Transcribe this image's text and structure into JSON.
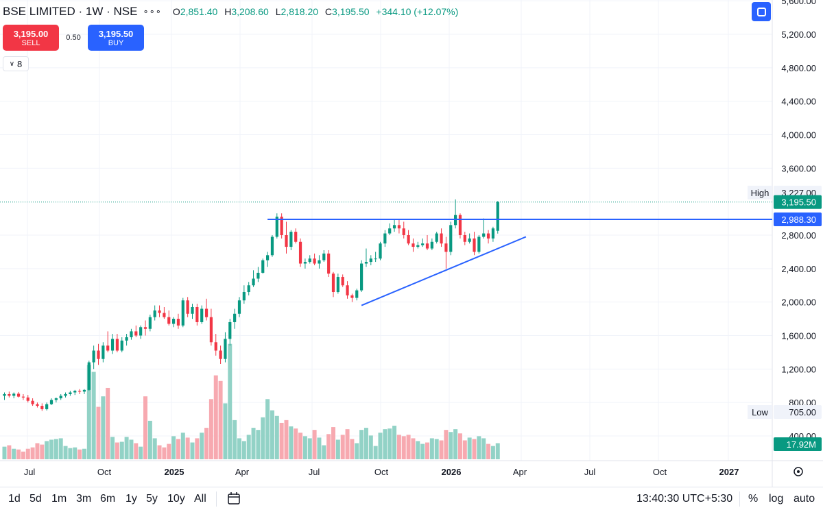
{
  "header": {
    "symbol": "BSE LIMITED",
    "interval": "1W",
    "exchange": "NSE",
    "open_label": "O",
    "open": "2,851.40",
    "high_label": "H",
    "high": "3,208.60",
    "low_label": "L",
    "low": "2,818.20",
    "close_label": "C",
    "close": "3,195.50",
    "change": "+344.10 (+12.07%)"
  },
  "trade": {
    "sell_price": "3,195.00",
    "sell_label": "SELL",
    "spread": "0.50",
    "buy_price": "3,195.50",
    "buy_label": "BUY"
  },
  "indicators": {
    "label": "8"
  },
  "price_axis": {
    "ticks": [
      "5,600.00",
      "5,200.00",
      "4,800.00",
      "4,400.00",
      "4,000.00",
      "3,600.00",
      "2,800.00",
      "2,400.00",
      "2,000.00",
      "1,600.00",
      "1,200.00",
      "800.00",
      "400.00"
    ],
    "high_label": "High",
    "high_value": "3,227.00",
    "current_price": "3,195.50",
    "line_price": "2,988.30",
    "low_label": "Low",
    "low_value": "705.00",
    "volume": "17.92M"
  },
  "time_axis": {
    "labels": [
      "Jul",
      "Oct",
      "2025",
      "Apr",
      "Jul",
      "Oct",
      "2026",
      "Apr",
      "Jul",
      "Oct",
      "2027"
    ]
  },
  "bottom_bar": {
    "timeframes": [
      "1d",
      "5d",
      "1m",
      "3m",
      "6m",
      "1y",
      "5y",
      "10y",
      "All"
    ],
    "clock": "13:40:30 UTC+5:30",
    "percent": "%",
    "log": "log",
    "auto": "auto"
  },
  "colors": {
    "up": "#089981",
    "down": "#f23645",
    "line": "#2962ff",
    "vol_up": "#92d2c6",
    "vol_down": "#f7a9b0"
  },
  "chart_data": {
    "type": "candlestick",
    "title": "BSE LIMITED · 1W · NSE",
    "ylim": [
      0,
      5700
    ],
    "x_labels": [
      "Jul",
      "Oct",
      "2025",
      "Apr",
      "Jul",
      "Oct",
      "2026",
      "Apr",
      "Jul",
      "Oct",
      "2027"
    ],
    "candles": [
      {
        "o": 880,
        "h": 920,
        "l": 830,
        "c": 900,
        "v": 180
      },
      {
        "o": 900,
        "h": 930,
        "l": 860,
        "c": 880,
        "v": 200
      },
      {
        "o": 880,
        "h": 920,
        "l": 850,
        "c": 905,
        "v": 150
      },
      {
        "o": 905,
        "h": 925,
        "l": 860,
        "c": 870,
        "v": 140
      },
      {
        "o": 870,
        "h": 900,
        "l": 830,
        "c": 860,
        "v": 110
      },
      {
        "o": 860,
        "h": 890,
        "l": 800,
        "c": 820,
        "v": 150
      },
      {
        "o": 820,
        "h": 850,
        "l": 760,
        "c": 780,
        "v": 170
      },
      {
        "o": 780,
        "h": 800,
        "l": 740,
        "c": 760,
        "v": 230
      },
      {
        "o": 760,
        "h": 790,
        "l": 700,
        "c": 720,
        "v": 210
      },
      {
        "o": 720,
        "h": 800,
        "l": 705,
        "c": 780,
        "v": 260
      },
      {
        "o": 780,
        "h": 850,
        "l": 770,
        "c": 830,
        "v": 280
      },
      {
        "o": 830,
        "h": 860,
        "l": 800,
        "c": 850,
        "v": 290
      },
      {
        "o": 850,
        "h": 900,
        "l": 830,
        "c": 880,
        "v": 300
      },
      {
        "o": 880,
        "h": 920,
        "l": 860,
        "c": 900,
        "v": 190
      },
      {
        "o": 900,
        "h": 940,
        "l": 880,
        "c": 920,
        "v": 160
      },
      {
        "o": 920,
        "h": 950,
        "l": 890,
        "c": 940,
        "v": 170
      },
      {
        "o": 940,
        "h": 960,
        "l": 900,
        "c": 930,
        "v": 140
      },
      {
        "o": 930,
        "h": 960,
        "l": 900,
        "c": 950,
        "v": 150
      },
      {
        "o": 950,
        "h": 1300,
        "l": 940,
        "c": 1280,
        "v": 1350
      },
      {
        "o": 1280,
        "h": 1480,
        "l": 1200,
        "c": 1420,
        "v": 1250
      },
      {
        "o": 1420,
        "h": 1500,
        "l": 1250,
        "c": 1320,
        "v": 750
      },
      {
        "o": 1320,
        "h": 1520,
        "l": 1280,
        "c": 1480,
        "v": 900
      },
      {
        "o": 1480,
        "h": 1650,
        "l": 1400,
        "c": 1420,
        "v": 1020
      },
      {
        "o": 1420,
        "h": 1620,
        "l": 1380,
        "c": 1560,
        "v": 320
      },
      {
        "o": 1560,
        "h": 1620,
        "l": 1400,
        "c": 1420,
        "v": 240
      },
      {
        "o": 1420,
        "h": 1580,
        "l": 1400,
        "c": 1540,
        "v": 250
      },
      {
        "o": 1540,
        "h": 1620,
        "l": 1480,
        "c": 1580,
        "v": 320
      },
      {
        "o": 1580,
        "h": 1680,
        "l": 1550,
        "c": 1650,
        "v": 280
      },
      {
        "o": 1650,
        "h": 1720,
        "l": 1580,
        "c": 1600,
        "v": 230
      },
      {
        "o": 1600,
        "h": 1720,
        "l": 1560,
        "c": 1700,
        "v": 180
      },
      {
        "o": 1700,
        "h": 1780,
        "l": 1600,
        "c": 1680,
        "v": 900
      },
      {
        "o": 1680,
        "h": 1850,
        "l": 1650,
        "c": 1820,
        "v": 550
      },
      {
        "o": 1820,
        "h": 1960,
        "l": 1780,
        "c": 1900,
        "v": 300
      },
      {
        "o": 1900,
        "h": 1960,
        "l": 1820,
        "c": 1870,
        "v": 200
      },
      {
        "o": 1870,
        "h": 1940,
        "l": 1800,
        "c": 1820,
        "v": 170
      },
      {
        "o": 1820,
        "h": 1900,
        "l": 1720,
        "c": 1740,
        "v": 220
      },
      {
        "o": 1740,
        "h": 1820,
        "l": 1700,
        "c": 1800,
        "v": 330
      },
      {
        "o": 1800,
        "h": 1860,
        "l": 1680,
        "c": 1720,
        "v": 290
      },
      {
        "o": 1720,
        "h": 2050,
        "l": 1700,
        "c": 2020,
        "v": 380
      },
      {
        "o": 2020,
        "h": 2060,
        "l": 1820,
        "c": 1860,
        "v": 310
      },
      {
        "o": 1860,
        "h": 1980,
        "l": 1800,
        "c": 1940,
        "v": 240
      },
      {
        "o": 1940,
        "h": 1980,
        "l": 1720,
        "c": 1760,
        "v": 300
      },
      {
        "o": 1760,
        "h": 1960,
        "l": 1740,
        "c": 1920,
        "v": 380
      },
      {
        "o": 1920,
        "h": 2040,
        "l": 1780,
        "c": 1820,
        "v": 450
      },
      {
        "o": 1820,
        "h": 1920,
        "l": 1480,
        "c": 1520,
        "v": 860
      },
      {
        "o": 1520,
        "h": 1620,
        "l": 1360,
        "c": 1420,
        "v": 1200
      },
      {
        "o": 1420,
        "h": 1480,
        "l": 1260,
        "c": 1320,
        "v": 1120
      },
      {
        "o": 1320,
        "h": 1640,
        "l": 1280,
        "c": 1560,
        "v": 800
      },
      {
        "o": 1560,
        "h": 1800,
        "l": 1480,
        "c": 1760,
        "v": 1650
      },
      {
        "o": 1760,
        "h": 1920,
        "l": 1680,
        "c": 1860,
        "v": 560
      },
      {
        "o": 1860,
        "h": 2060,
        "l": 1820,
        "c": 2020,
        "v": 300
      },
      {
        "o": 2020,
        "h": 2200,
        "l": 1980,
        "c": 2120,
        "v": 260
      },
      {
        "o": 2120,
        "h": 2240,
        "l": 2080,
        "c": 2200,
        "v": 350
      },
      {
        "o": 2200,
        "h": 2380,
        "l": 2180,
        "c": 2280,
        "v": 450
      },
      {
        "o": 2280,
        "h": 2420,
        "l": 2240,
        "c": 2350,
        "v": 420
      },
      {
        "o": 2350,
        "h": 2520,
        "l": 2340,
        "c": 2500,
        "v": 600
      },
      {
        "o": 2500,
        "h": 2600,
        "l": 2420,
        "c": 2560,
        "v": 860
      },
      {
        "o": 2560,
        "h": 2800,
        "l": 2540,
        "c": 2780,
        "v": 700
      },
      {
        "o": 2780,
        "h": 3060,
        "l": 2760,
        "c": 3020,
        "v": 620
      },
      {
        "o": 3020,
        "h": 3060,
        "l": 2760,
        "c": 2800,
        "v": 520
      },
      {
        "o": 2800,
        "h": 2960,
        "l": 2580,
        "c": 2660,
        "v": 560
      },
      {
        "o": 2660,
        "h": 2860,
        "l": 2620,
        "c": 2840,
        "v": 470
      },
      {
        "o": 2840,
        "h": 2880,
        "l": 2700,
        "c": 2720,
        "v": 440
      },
      {
        "o": 2720,
        "h": 2760,
        "l": 2420,
        "c": 2460,
        "v": 380
      },
      {
        "o": 2460,
        "h": 2520,
        "l": 2400,
        "c": 2480,
        "v": 330
      },
      {
        "o": 2480,
        "h": 2560,
        "l": 2460,
        "c": 2520,
        "v": 300
      },
      {
        "o": 2520,
        "h": 2580,
        "l": 2440,
        "c": 2460,
        "v": 420
      },
      {
        "o": 2460,
        "h": 2560,
        "l": 2400,
        "c": 2500,
        "v": 310
      },
      {
        "o": 2500,
        "h": 2620,
        "l": 2480,
        "c": 2580,
        "v": 200
      },
      {
        "o": 2580,
        "h": 2620,
        "l": 2300,
        "c": 2340,
        "v": 360
      },
      {
        "o": 2340,
        "h": 2360,
        "l": 2060,
        "c": 2120,
        "v": 460
      },
      {
        "o": 2120,
        "h": 2340,
        "l": 2100,
        "c": 2300,
        "v": 280
      },
      {
        "o": 2300,
        "h": 2330,
        "l": 2180,
        "c": 2200,
        "v": 350
      },
      {
        "o": 2200,
        "h": 2250,
        "l": 2040,
        "c": 2080,
        "v": 430
      },
      {
        "o": 2080,
        "h": 2100,
        "l": 2000,
        "c": 2050,
        "v": 290
      },
      {
        "o": 2050,
        "h": 2160,
        "l": 2020,
        "c": 2140,
        "v": 230
      },
      {
        "o": 2140,
        "h": 2500,
        "l": 2120,
        "c": 2460,
        "v": 420
      },
      {
        "o": 2460,
        "h": 2640,
        "l": 2420,
        "c": 2480,
        "v": 450
      },
      {
        "o": 2480,
        "h": 2560,
        "l": 2440,
        "c": 2520,
        "v": 340
      },
      {
        "o": 2520,
        "h": 2600,
        "l": 2480,
        "c": 2520,
        "v": 190
      },
      {
        "o": 2520,
        "h": 2720,
        "l": 2500,
        "c": 2700,
        "v": 380
      },
      {
        "o": 2700,
        "h": 2860,
        "l": 2660,
        "c": 2820,
        "v": 430
      },
      {
        "o": 2820,
        "h": 2940,
        "l": 2800,
        "c": 2880,
        "v": 440
      },
      {
        "o": 2880,
        "h": 2980,
        "l": 2840,
        "c": 2920,
        "v": 480
      },
      {
        "o": 2920,
        "h": 2980,
        "l": 2820,
        "c": 2880,
        "v": 350
      },
      {
        "o": 2880,
        "h": 2960,
        "l": 2760,
        "c": 2800,
        "v": 330
      },
      {
        "o": 2800,
        "h": 2860,
        "l": 2680,
        "c": 2700,
        "v": 350
      },
      {
        "o": 2700,
        "h": 2760,
        "l": 2600,
        "c": 2660,
        "v": 300
      },
      {
        "o": 2660,
        "h": 2720,
        "l": 2640,
        "c": 2680,
        "v": 260
      },
      {
        "o": 2680,
        "h": 2760,
        "l": 2660,
        "c": 2700,
        "v": 220
      },
      {
        "o": 2700,
        "h": 2800,
        "l": 2620,
        "c": 2640,
        "v": 240
      },
      {
        "o": 2640,
        "h": 2760,
        "l": 2620,
        "c": 2720,
        "v": 300
      },
      {
        "o": 2720,
        "h": 2840,
        "l": 2700,
        "c": 2820,
        "v": 290
      },
      {
        "o": 2820,
        "h": 2880,
        "l": 2660,
        "c": 2700,
        "v": 270
      },
      {
        "o": 2700,
        "h": 2780,
        "l": 2400,
        "c": 2600,
        "v": 420
      },
      {
        "o": 2600,
        "h": 2960,
        "l": 2560,
        "c": 2920,
        "v": 390
      },
      {
        "o": 2920,
        "h": 3227,
        "l": 2880,
        "c": 3040,
        "v": 430
      },
      {
        "o": 3040,
        "h": 3060,
        "l": 2760,
        "c": 2800,
        "v": 370
      },
      {
        "o": 2800,
        "h": 2840,
        "l": 2680,
        "c": 2720,
        "v": 270
      },
      {
        "o": 2720,
        "h": 2820,
        "l": 2700,
        "c": 2760,
        "v": 310
      },
      {
        "o": 2760,
        "h": 2840,
        "l": 2560,
        "c": 2600,
        "v": 290
      },
      {
        "o": 2600,
        "h": 2800,
        "l": 2580,
        "c": 2780,
        "v": 330
      },
      {
        "o": 2780,
        "h": 3000,
        "l": 2760,
        "c": 2820,
        "v": 300
      },
      {
        "o": 2820,
        "h": 2860,
        "l": 2700,
        "c": 2760,
        "v": 220
      },
      {
        "o": 2760,
        "h": 2900,
        "l": 2720,
        "c": 2880,
        "v": 190
      },
      {
        "o": 2851.4,
        "h": 3208.6,
        "l": 2818.2,
        "c": 3195.5,
        "v": 230
      }
    ],
    "resistance_line": {
      "price": 2988.3,
      "from_candle": 56
    },
    "trendline": {
      "start_candle": 76,
      "start_price": 1960,
      "end_candle": 111,
      "end_price": 2780
    }
  }
}
